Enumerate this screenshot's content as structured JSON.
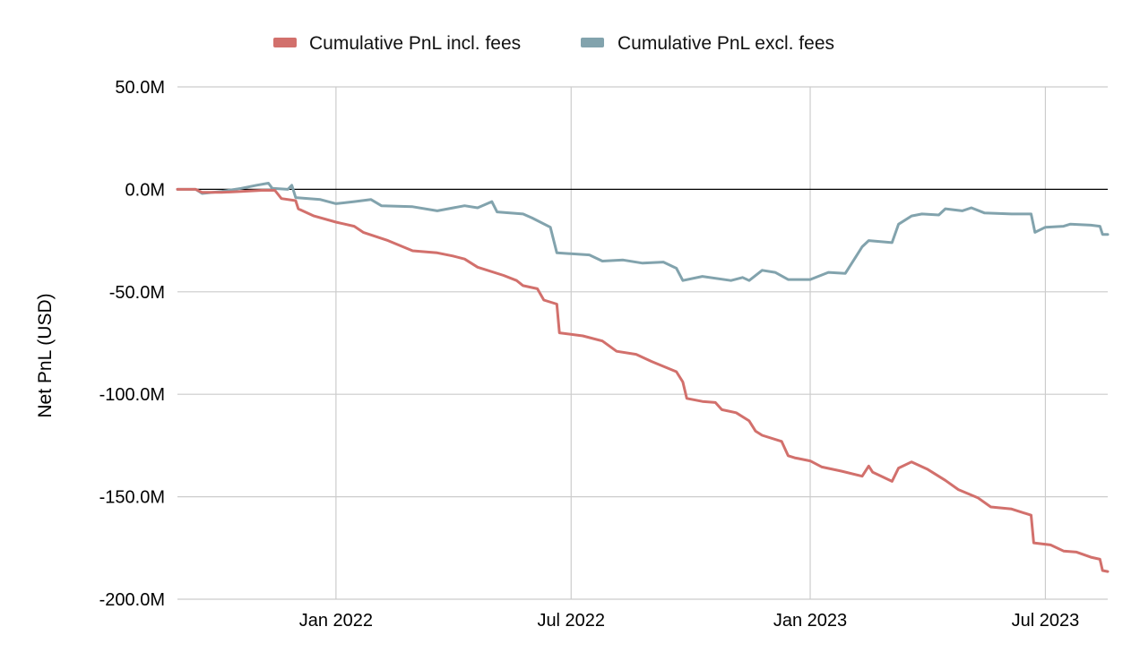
{
  "chart_data": {
    "type": "line",
    "title": "",
    "xlabel": "",
    "ylabel": "Net PnL (USD)",
    "ylim": [
      -200000000,
      50000000
    ],
    "xlim": [
      "2021-09-01",
      "2023-08-18"
    ],
    "y_ticks": [
      {
        "value": 50000000,
        "label": "50.0M"
      },
      {
        "value": 0,
        "label": "0.0M"
      },
      {
        "value": -50000000,
        "label": "-50.0M"
      },
      {
        "value": -100000000,
        "label": "-100.0M"
      },
      {
        "value": -150000000,
        "label": "-150.0M"
      },
      {
        "value": -200000000,
        "label": "-200.0M"
      }
    ],
    "x_ticks": [
      {
        "value": "2022-01-01",
        "label": "Jan 2022"
      },
      {
        "value": "2022-07-01",
        "label": "Jul 2022"
      },
      {
        "value": "2023-01-01",
        "label": "Jan 2023"
      },
      {
        "value": "2023-07-01",
        "label": "Jul 2023"
      }
    ],
    "grid": true,
    "zero_line": true,
    "legend_position": "top-center",
    "series": [
      {
        "name": "Cumulative PnL incl. fees",
        "color": "#d2706c",
        "points": [
          [
            "2021-09-01",
            0.0
          ],
          [
            "2021-09-15",
            0.0
          ],
          [
            "2021-09-20",
            -1.5
          ],
          [
            "2021-10-05",
            -1.5
          ],
          [
            "2021-10-20",
            -1.0
          ],
          [
            "2021-11-05",
            -0.5
          ],
          [
            "2021-11-15",
            -0.5
          ],
          [
            "2021-11-20",
            -4.5
          ],
          [
            "2021-12-01",
            -5.5
          ],
          [
            "2021-12-03",
            -9.5
          ],
          [
            "2021-12-15",
            -13.0
          ],
          [
            "2022-01-01",
            -16.0
          ],
          [
            "2022-01-15",
            -18.0
          ],
          [
            "2022-01-22",
            -21.0
          ],
          [
            "2022-02-10",
            -25.0
          ],
          [
            "2022-03-01",
            -30.0
          ],
          [
            "2022-03-20",
            -31.0
          ],
          [
            "2022-04-01",
            -32.5
          ],
          [
            "2022-04-10",
            -34.0
          ],
          [
            "2022-04-20",
            -38.0
          ],
          [
            "2022-05-10",
            -42.0
          ],
          [
            "2022-05-20",
            -44.5
          ],
          [
            "2022-05-25",
            -47.0
          ],
          [
            "2022-06-05",
            -48.5
          ],
          [
            "2022-06-10",
            -54.0
          ],
          [
            "2022-06-20",
            -56.0
          ],
          [
            "2022-06-22",
            -70.0
          ],
          [
            "2022-07-10",
            -71.5
          ],
          [
            "2022-07-25",
            -74.0
          ],
          [
            "2022-08-05",
            -79.0
          ],
          [
            "2022-08-20",
            -80.5
          ],
          [
            "2022-09-01",
            -84.0
          ],
          [
            "2022-09-20",
            -89.0
          ],
          [
            "2022-09-25",
            -94.0
          ],
          [
            "2022-09-28",
            -102.0
          ],
          [
            "2022-10-10",
            -103.5
          ],
          [
            "2022-10-20",
            -104.0
          ],
          [
            "2022-10-25",
            -107.5
          ],
          [
            "2022-11-05",
            -109.0
          ],
          [
            "2022-11-15",
            -113.0
          ],
          [
            "2022-11-20",
            -118.0
          ],
          [
            "2022-11-25",
            -120.0
          ],
          [
            "2022-12-10",
            -123.0
          ],
          [
            "2022-12-15",
            -130.0
          ],
          [
            "2022-12-20",
            -131.0
          ],
          [
            "2023-01-01",
            -132.5
          ],
          [
            "2023-01-10",
            -135.5
          ],
          [
            "2023-01-25",
            -137.5
          ],
          [
            "2023-02-10",
            -140.0
          ],
          [
            "2023-02-15",
            -135.0
          ],
          [
            "2023-02-18",
            -138.0
          ],
          [
            "2023-03-05",
            -142.5
          ],
          [
            "2023-03-10",
            -136.0
          ],
          [
            "2023-03-20",
            -133.0
          ],
          [
            "2023-04-01",
            -136.5
          ],
          [
            "2023-04-15",
            -142.0
          ],
          [
            "2023-04-25",
            -146.5
          ],
          [
            "2023-05-10",
            -150.5
          ],
          [
            "2023-05-20",
            -155.0
          ],
          [
            "2023-06-05",
            -156.0
          ],
          [
            "2023-06-20",
            -159.0
          ],
          [
            "2023-06-22",
            -172.5
          ],
          [
            "2023-07-05",
            -173.5
          ],
          [
            "2023-07-15",
            -176.5
          ],
          [
            "2023-07-25",
            -177.0
          ],
          [
            "2023-08-05",
            -179.5
          ],
          [
            "2023-08-12",
            -180.5
          ],
          [
            "2023-08-14",
            -186.0
          ],
          [
            "2023-08-18",
            -186.5
          ]
        ]
      },
      {
        "name": "Cumulative PnL excl. fees",
        "color": "#82a3ad",
        "points": [
          [
            "2021-09-01",
            0.0
          ],
          [
            "2021-09-15",
            0.0
          ],
          [
            "2021-09-20",
            -2.0
          ],
          [
            "2021-10-05",
            -1.0
          ],
          [
            "2021-10-20",
            0.5
          ],
          [
            "2021-11-01",
            2.0
          ],
          [
            "2021-11-10",
            3.0
          ],
          [
            "2021-11-13",
            0.5
          ],
          [
            "2021-11-25",
            0.0
          ],
          [
            "2021-11-28",
            2.0
          ],
          [
            "2021-12-01",
            -4.0
          ],
          [
            "2021-12-20",
            -5.0
          ],
          [
            "2022-01-01",
            -7.0
          ],
          [
            "2022-01-15",
            -6.0
          ],
          [
            "2022-01-28",
            -5.0
          ],
          [
            "2022-02-05",
            -8.0
          ],
          [
            "2022-03-01",
            -8.5
          ],
          [
            "2022-03-20",
            -10.5
          ],
          [
            "2022-04-10",
            -8.0
          ],
          [
            "2022-04-20",
            -9.0
          ],
          [
            "2022-05-01",
            -6.0
          ],
          [
            "2022-05-05",
            -11.0
          ],
          [
            "2022-05-25",
            -12.0
          ],
          [
            "2022-06-01",
            -14.0
          ],
          [
            "2022-06-15",
            -18.5
          ],
          [
            "2022-06-20",
            -31.0
          ],
          [
            "2022-07-15",
            -32.0
          ],
          [
            "2022-07-25",
            -35.0
          ],
          [
            "2022-08-10",
            -34.5
          ],
          [
            "2022-08-25",
            -36.0
          ],
          [
            "2022-09-10",
            -35.5
          ],
          [
            "2022-09-20",
            -38.5
          ],
          [
            "2022-09-25",
            -44.5
          ],
          [
            "2022-10-10",
            -42.5
          ],
          [
            "2022-11-01",
            -44.5
          ],
          [
            "2022-11-10",
            -43.0
          ],
          [
            "2022-11-15",
            -44.5
          ],
          [
            "2022-11-25",
            -39.5
          ],
          [
            "2022-12-05",
            -40.5
          ],
          [
            "2022-12-15",
            -44.0
          ],
          [
            "2023-01-01",
            -44.0
          ],
          [
            "2023-01-15",
            -40.5
          ],
          [
            "2023-01-28",
            -41.0
          ],
          [
            "2023-02-05",
            -33.0
          ],
          [
            "2023-02-10",
            -28.0
          ],
          [
            "2023-02-15",
            -25.0
          ],
          [
            "2023-03-05",
            -26.0
          ],
          [
            "2023-03-10",
            -17.0
          ],
          [
            "2023-03-20",
            -13.0
          ],
          [
            "2023-03-28",
            -12.0
          ],
          [
            "2023-04-10",
            -12.5
          ],
          [
            "2023-04-15",
            -9.5
          ],
          [
            "2023-04-28",
            -10.5
          ],
          [
            "2023-05-05",
            -9.0
          ],
          [
            "2023-05-15",
            -11.5
          ],
          [
            "2023-06-05",
            -12.0
          ],
          [
            "2023-06-20",
            -12.0
          ],
          [
            "2023-06-23",
            -21.0
          ],
          [
            "2023-07-01",
            -18.5
          ],
          [
            "2023-07-15",
            -18.0
          ],
          [
            "2023-07-20",
            -17.0
          ],
          [
            "2023-08-05",
            -17.5
          ],
          [
            "2023-08-12",
            -18.0
          ],
          [
            "2023-08-14",
            -22.0
          ],
          [
            "2023-08-18",
            -22.0
          ]
        ],
        "unit_note": ""
      }
    ],
    "value_unit": "M USD"
  }
}
